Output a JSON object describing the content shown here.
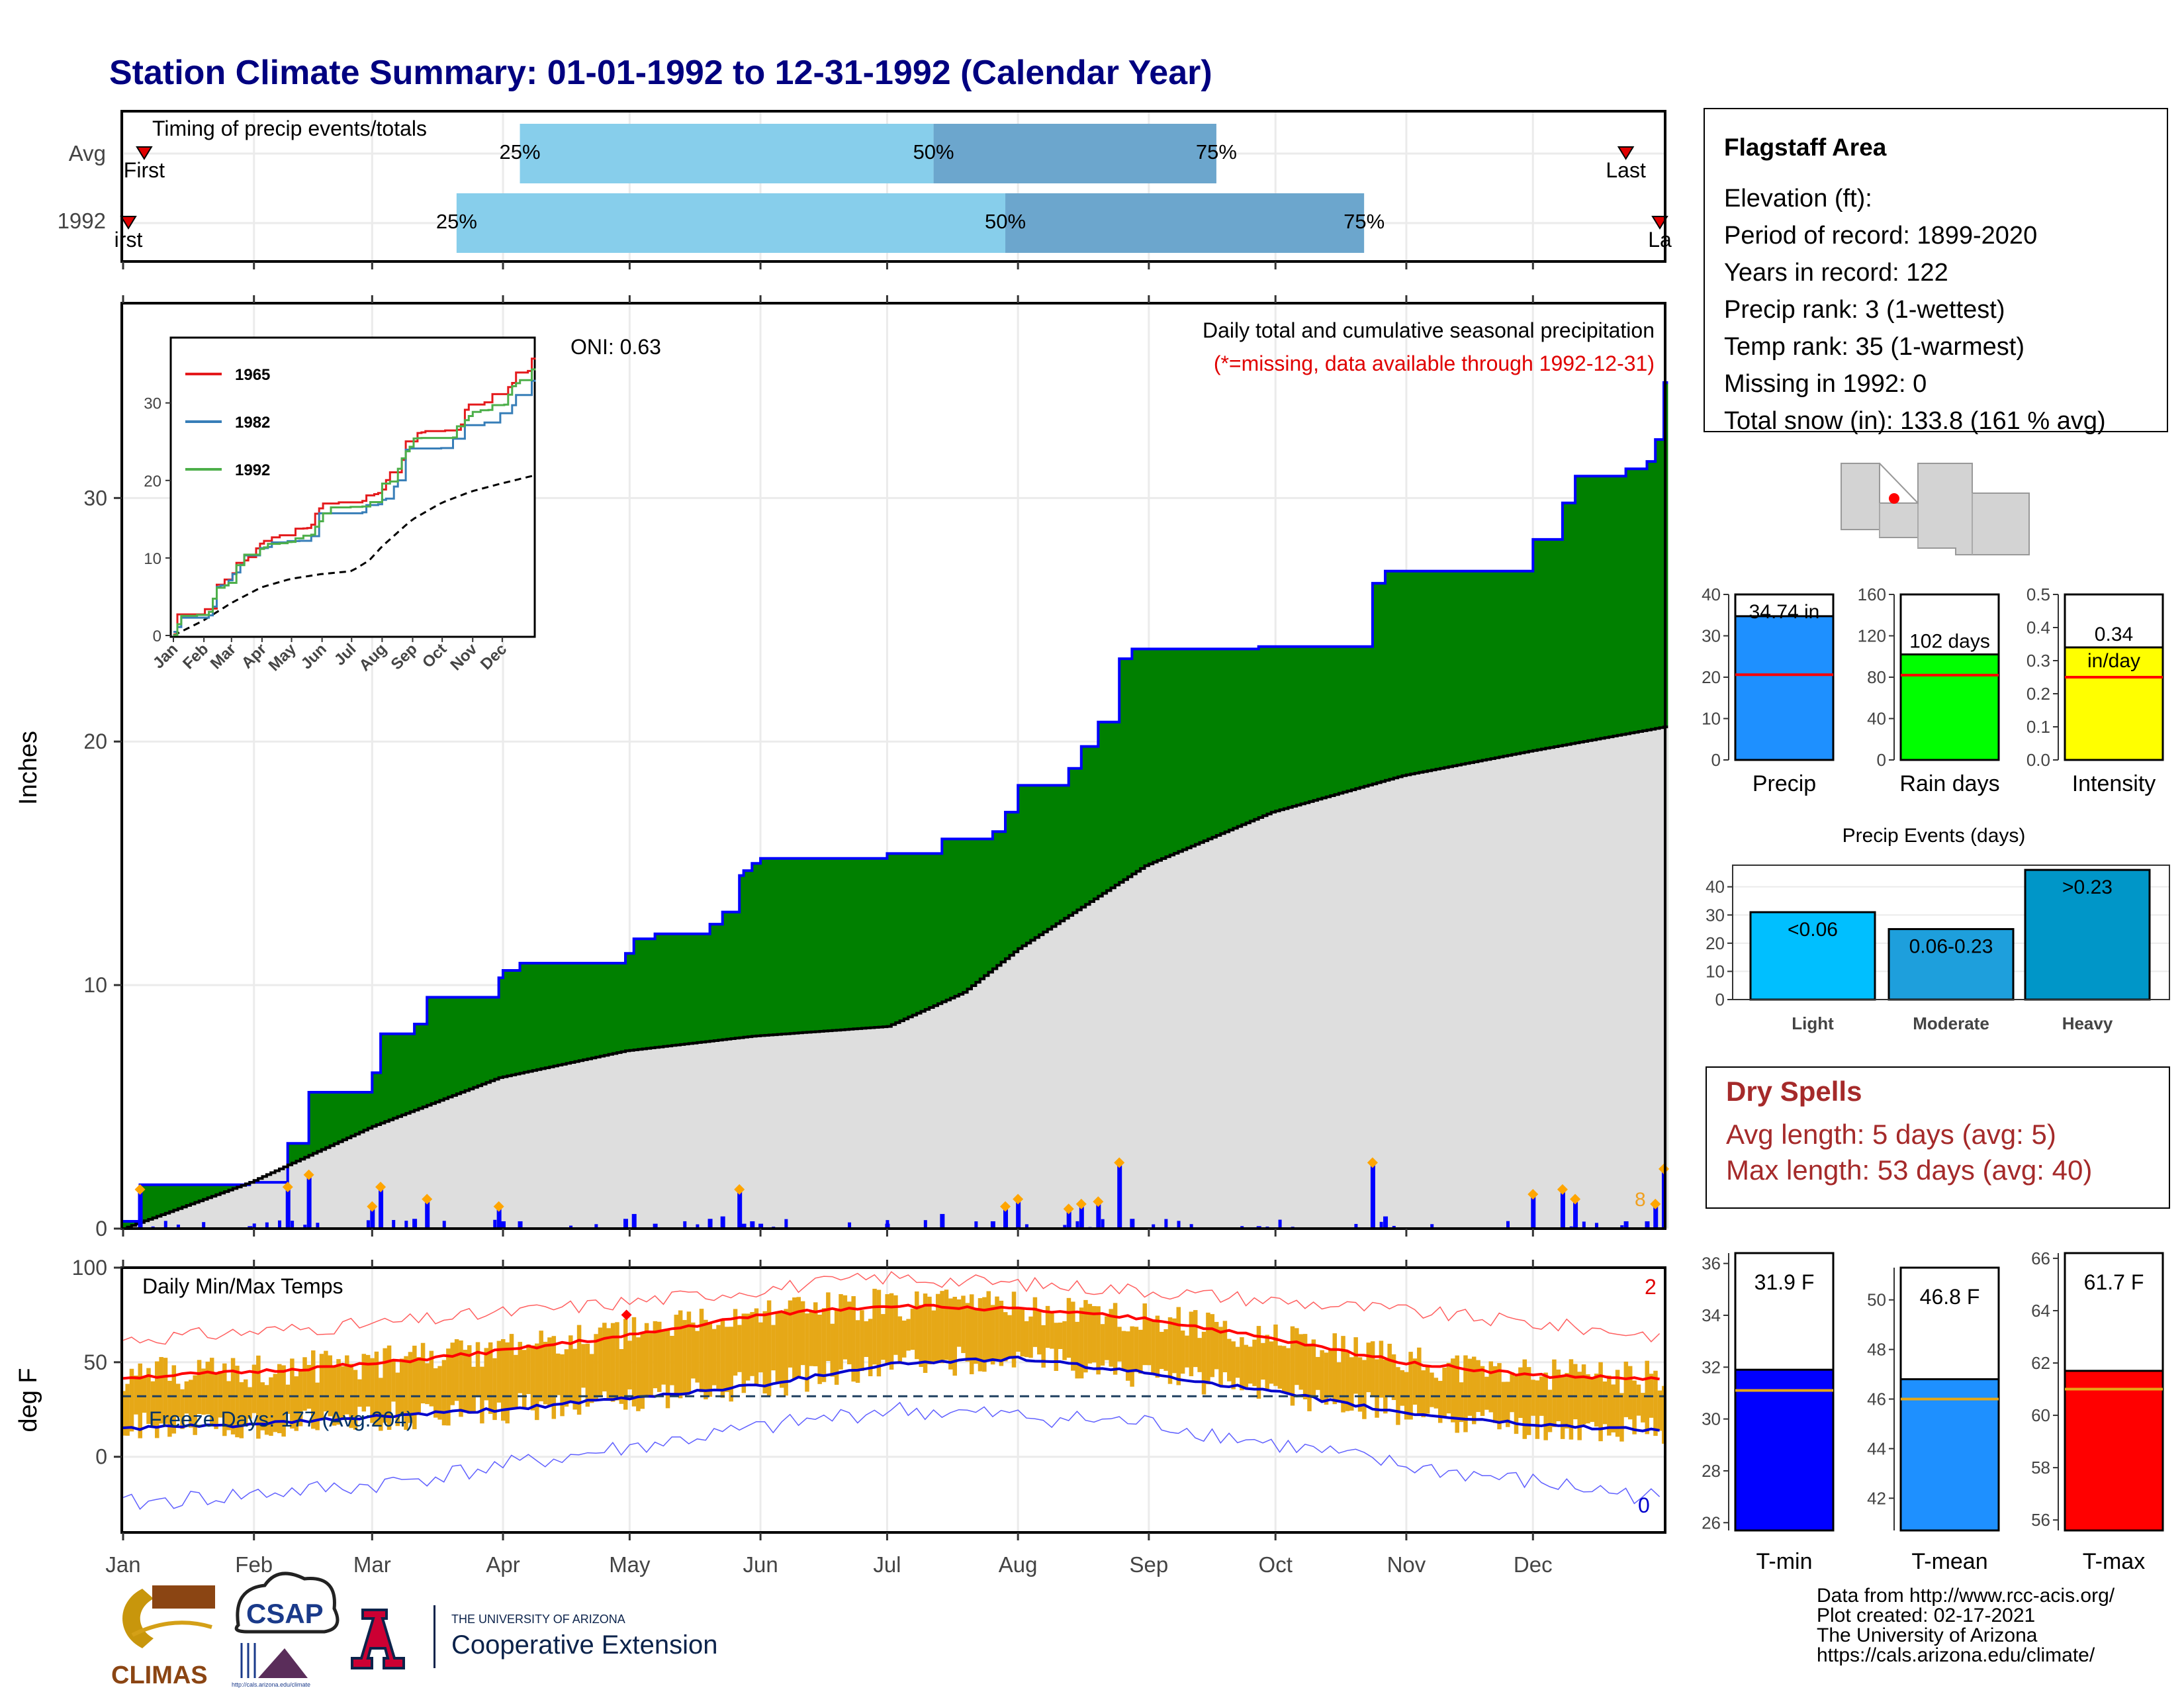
{
  "title": "Station Climate Summary: 01-01-1992 to 12-31-1992 (Calendar Year)",
  "timing": {
    "panel_title": "Timing of precip events/totals",
    "rows": [
      {
        "label": "Avg",
        "first_doy": 6,
        "q25": 95,
        "q50": 193,
        "q75": 260,
        "last_doy": 357,
        "first_label": "First",
        "last_label": "Last",
        "pct25": "25%",
        "pct50": "50%",
        "pct75": "75%"
      },
      {
        "label": "1992",
        "first_doy": 1,
        "q25": 80,
        "q50": 210,
        "q75": 295,
        "last_doy": 366,
        "first_label": "irst",
        "last_label": "La",
        "pct25": "25%",
        "pct50": "50%",
        "pct75": "75%"
      }
    ]
  },
  "precip_panel": {
    "ylabel": "Inches",
    "y_ticks": [
      "0",
      "10",
      "20",
      "30"
    ],
    "oni": "ONI: 0.63",
    "caption1": "Daily total and cumulative seasonal precipitation",
    "caption2": "(*=missing, data available through 1992-12-31)",
    "side_number": "8",
    "inset": {
      "y_ticks": [
        "0",
        "10",
        "20",
        "30"
      ],
      "x_ticks": [
        "Jan",
        "Feb",
        "Mar",
        "Apr",
        "May",
        "Jun",
        "Jul",
        "Aug",
        "Sep",
        "Oct",
        "Nov",
        "Dec"
      ],
      "legend": [
        {
          "name": "1965",
          "color": "#e41a1c"
        },
        {
          "name": "1982",
          "color": "#377eb8"
        },
        {
          "name": "1992",
          "color": "#4daf4a"
        }
      ]
    }
  },
  "temp_panel": {
    "ylabel": "deg F",
    "title": "Daily Min/Max Temps",
    "freeze_label": "Freeze Days: 177 (Avg:204)",
    "record_high_count": "2",
    "record_low_count": "0",
    "y_ticks": [
      "0",
      "50",
      "100"
    ]
  },
  "months": [
    "Jan",
    "Feb",
    "Mar",
    "Apr",
    "May",
    "Jun",
    "Jul",
    "Aug",
    "Sep",
    "Oct",
    "Nov",
    "Dec"
  ],
  "station": {
    "name": "Flagstaff Area",
    "elevation": "Elevation (ft):",
    "period": "Period of record: 1899-2020",
    "years": "Years in record: 122",
    "precip_rank": "Precip rank: 3 (1-wettest)",
    "temp_rank": "Temp rank: 35 (1-warmest)",
    "missing": "Missing in 1992: 0",
    "snow": "Total snow (in): 133.8 (161 % avg)"
  },
  "precip_bars": [
    {
      "label": "Precip",
      "value_label": "34.74 in",
      "value": 34.74,
      "avg": 20.6,
      "max": 40,
      "ticks": [
        "0",
        "10",
        "20",
        "30",
        "40"
      ],
      "color": "#1e90ff"
    },
    {
      "label": "Rain days",
      "value_label": "102 days",
      "value": 102,
      "avg": 82,
      "max": 160,
      "ticks": [
        "0",
        "40",
        "80",
        "120",
        "160"
      ],
      "color": "#00ff00"
    },
    {
      "label": "Intensity",
      "value_label": "0.34",
      "value_label2": "in/day",
      "value": 0.34,
      "avg": 0.25,
      "max": 0.5,
      "ticks": [
        "0.0",
        "0.1",
        "0.2",
        "0.3",
        "0.4",
        "0.5"
      ],
      "color": "#ffff00"
    }
  ],
  "events": {
    "title": "Precip Events (days)",
    "ticks": [
      "0",
      "10",
      "20",
      "30",
      "40"
    ],
    "bars": [
      {
        "label": "Light",
        "text": "<0.06",
        "value": 31,
        "color": "#00bfff"
      },
      {
        "label": "Moderate",
        "text": "0.06-0.23",
        "value": 25,
        "color": "#1e9fdc"
      },
      {
        "label": "Heavy",
        "text": ">0.23",
        "value": 46,
        "color": "#0096c8"
      }
    ]
  },
  "dry_spells": {
    "title": "Dry Spells",
    "avg": "Avg length: 5 days (avg: 5)",
    "max": "Max length: 53 days (avg: 40)"
  },
  "temp_bars": [
    {
      "label": "T-min",
      "value_label": "31.9 F",
      "value": 31.9,
      "avg": 31.1,
      "ymin": 25.7,
      "ymax": 36.4,
      "ticks": [
        "26",
        "28",
        "30",
        "32",
        "34",
        "36"
      ],
      "tickvals": [
        26,
        28,
        30,
        32,
        34,
        36
      ],
      "color": "#0000ff"
    },
    {
      "label": "T-mean",
      "value_label": "46.8 F",
      "value": 46.8,
      "avg": 46.0,
      "ymin": 40.7,
      "ymax": 51.3,
      "ticks": [
        "42",
        "44",
        "46",
        "48",
        "50"
      ],
      "tickvals": [
        42,
        44,
        46,
        48,
        50
      ],
      "color": "#1e90ff"
    },
    {
      "label": "T-max",
      "value_label": "61.7 F",
      "value": 61.7,
      "avg": 61.0,
      "ymin": 55.6,
      "ymax": 66.2,
      "ticks": [
        "56",
        "58",
        "60",
        "62",
        "64",
        "66"
      ],
      "tickvals": [
        56,
        58,
        60,
        62,
        64,
        66
      ],
      "color": "#ff0000"
    }
  ],
  "footer": {
    "line1": "Data from http://www.rcc-acis.org/",
    "line2": "Plot created: 02-17-2021",
    "line3": "The University of Arizona",
    "line4": "https://cals.arizona.edu/climate/"
  },
  "logos": {
    "climas": "CLIMAS",
    "csap": "CSAP",
    "csap_url": "http://cals.arizona.edu/climate",
    "ua_small": "THE UNIVERSITY OF ARIZONA",
    "ua_big": "Cooperative Extension"
  },
  "chart_data": [
    {
      "type": "area",
      "title": "Daily total and cumulative seasonal precipitation",
      "ylabel": "Inches",
      "ylim": [
        0,
        38
      ],
      "x_unit": "day of year",
      "series": [
        {
          "name": "1992",
          "x": [
            1,
            5,
            31,
            40,
            45,
            60,
            62,
            70,
            73,
            90,
            91,
            95,
            120,
            122,
            127,
            140,
            143,
            147,
            148,
            150,
            152,
            182,
            195,
            207,
            210,
            213,
            225,
            228,
            232,
            237,
            240,
            270,
            280,
            297,
            300,
            335,
            342,
            345,
            357,
            362,
            364,
            366
          ],
          "values": [
            0.3,
            1.8,
            1.9,
            3.5,
            5.6,
            6.4,
            8.0,
            8.4,
            9.5,
            10.3,
            10.6,
            10.9,
            11.3,
            11.9,
            12.1,
            12.5,
            13.0,
            14.5,
            14.7,
            15.0,
            15.2,
            15.4,
            16.0,
            16.3,
            17.1,
            18.2,
            18.9,
            19.8,
            20.8,
            23.4,
            23.8,
            23.9,
            23.9,
            26.5,
            27.0,
            28.3,
            29.8,
            30.9,
            31.2,
            31.5,
            32.4,
            34.74
          ]
        },
        {
          "name": "Avg",
          "x": [
            1,
            31,
            60,
            90,
            120,
            150,
            182,
            200,
            213,
            243,
            273,
            304,
            334,
            366
          ],
          "values": [
            0,
            1.9,
            4.2,
            6.2,
            7.3,
            7.9,
            8.3,
            9.7,
            11.5,
            14.9,
            17.1,
            18.6,
            19.6,
            20.6
          ]
        }
      ]
    },
    {
      "type": "line",
      "title": "Daily Min/Max Temps",
      "ylabel": "deg F",
      "ylim": [
        -40,
        100
      ],
      "series": [
        {
          "name": "Avg max",
          "x": [
            1,
            32,
            60,
            91,
            121,
            152,
            182,
            213,
            244,
            274,
            305,
            335,
            366
          ],
          "values": [
            42,
            45,
            49,
            56,
            64,
            75,
            80,
            78,
            73,
            62,
            50,
            43,
            41
          ]
        },
        {
          "name": "Avg min",
          "x": [
            1,
            32,
            60,
            91,
            121,
            152,
            182,
            213,
            244,
            274,
            305,
            335,
            366
          ],
          "values": [
            15,
            17,
            21,
            25,
            31,
            38,
            49,
            52,
            44,
            34,
            23,
            17,
            14
          ]
        },
        {
          "name": "Record max",
          "x": [
            1,
            60,
            121,
            182,
            244,
            305,
            366
          ],
          "values": [
            62,
            70,
            82,
            95,
            88,
            77,
            64
          ]
        },
        {
          "name": "Record min",
          "x": [
            1,
            60,
            121,
            182,
            244,
            305,
            366
          ],
          "values": [
            -25,
            -15,
            5,
            25,
            18,
            -5,
            -22
          ]
        }
      ]
    }
  ]
}
